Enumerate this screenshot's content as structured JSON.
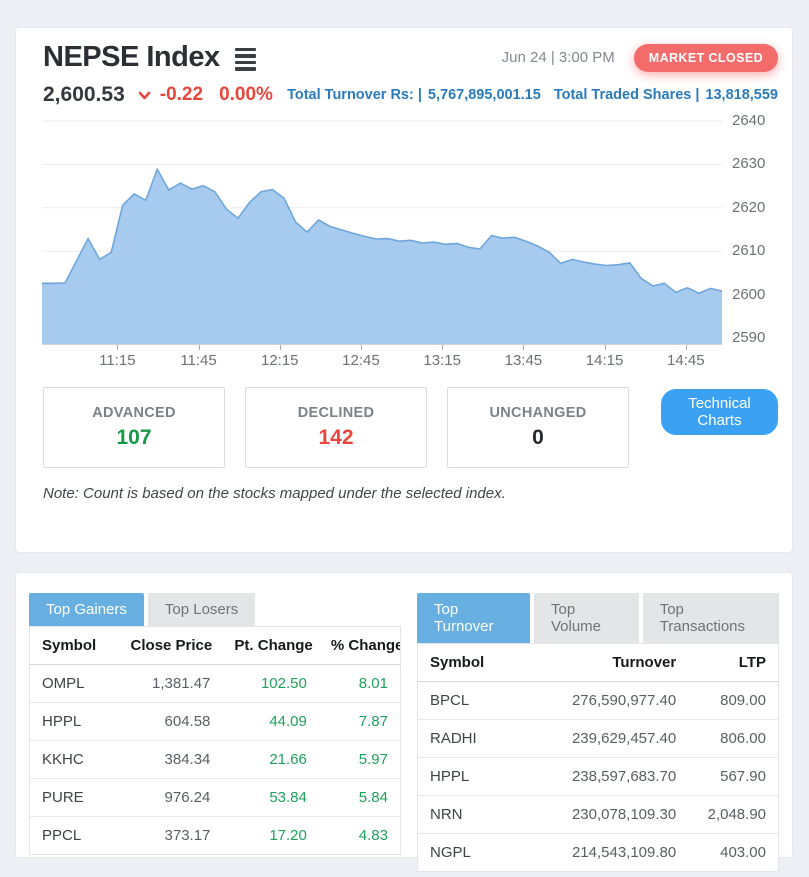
{
  "header": {
    "title": "NEPSE Index",
    "datetime": "Jun 24 | 3:00 PM",
    "market_status": "MARKET CLOSED",
    "index_value": "2,600.53",
    "point_change": "-0.22",
    "percent_change": "0.00%",
    "total_turnover_label": "Total Turnover Rs: |",
    "total_turnover_value": "5,767,895,001.15",
    "total_shares_label": "Total Traded Shares |",
    "total_shares_value": "13,818,559"
  },
  "chart_data": {
    "type": "area",
    "title": "NEPSE Index intraday",
    "x_tick_labels": [
      "11:15",
      "11:45",
      "12:15",
      "12:45",
      "13:15",
      "13:45",
      "14:15",
      "14:45"
    ],
    "y_tick_labels": [
      2640,
      2630,
      2620,
      2610,
      2600,
      2590
    ],
    "ylim": [
      2588.5,
      2641.8
    ],
    "grid": true,
    "legend": false,
    "series": [
      {
        "name": "NEPSE Index",
        "values": [
          2602.6,
          2602.6,
          2602.7,
          2607.8,
          2612.9,
          2608.1,
          2609.7,
          2620.6,
          2623.2,
          2621.7,
          2628.9,
          2624.1,
          2625.7,
          2624.3,
          2625.1,
          2623.7,
          2619.7,
          2617.6,
          2621.2,
          2623.7,
          2624.2,
          2622.2,
          2616.7,
          2614.4,
          2617.2,
          2615.7,
          2614.9,
          2614.1,
          2613.4,
          2612.8,
          2612.9,
          2612.3,
          2612.5,
          2611.9,
          2612.1,
          2611.6,
          2611.8,
          2610.9,
          2610.5,
          2613.6,
          2613.0,
          2613.2,
          2612.3,
          2611.2,
          2609.8,
          2607.2,
          2608.1,
          2607.5,
          2607.0,
          2606.7,
          2606.9,
          2607.3,
          2603.7,
          2602.0,
          2602.6,
          2600.5,
          2601.6,
          2600.3,
          2601.4,
          2600.8
        ]
      }
    ],
    "colors": {
      "fill": "#a6cbee",
      "line": "#6ea6db",
      "grid": "#ebebeb"
    }
  },
  "summary": {
    "boxes": [
      {
        "label": "ADVANCED",
        "value": "107",
        "tone": "green"
      },
      {
        "label": "DECLINED",
        "value": "142",
        "tone": "red"
      },
      {
        "label": "UNCHANGED",
        "value": "0",
        "tone": "dark"
      }
    ],
    "technical_charts_label": "Technical Charts",
    "note": "Note: Count is based on the stocks mapped under the selected index."
  },
  "left_panel": {
    "tabs": [
      {
        "label": "Top Gainers",
        "active": true
      },
      {
        "label": "Top Losers",
        "active": false
      }
    ],
    "columns": [
      "Symbol",
      "Close Price",
      "Pt. Change",
      "% Change"
    ],
    "green_columns": [
      2,
      3
    ],
    "rows": [
      [
        "OMPL",
        "1,381.47",
        "102.50",
        "8.01"
      ],
      [
        "HPPL",
        "604.58",
        "44.09",
        "7.87"
      ],
      [
        "KKHC",
        "384.34",
        "21.66",
        "5.97"
      ],
      [
        "PURE",
        "976.24",
        "53.84",
        "5.84"
      ],
      [
        "PPCL",
        "373.17",
        "17.20",
        "4.83"
      ]
    ]
  },
  "right_panel": {
    "tabs": [
      {
        "label": "Top Turnover",
        "active": true
      },
      {
        "label": "Top Volume",
        "active": false
      },
      {
        "label": "Top Transactions",
        "active": false
      }
    ],
    "columns": [
      "Symbol",
      "Turnover",
      "LTP"
    ],
    "green_columns": [],
    "rows": [
      [
        "BPCL",
        "276,590,977.40",
        "809.00"
      ],
      [
        "RADHI",
        "239,629,457.40",
        "806.00"
      ],
      [
        "HPPL",
        "238,597,683.70",
        "567.90"
      ],
      [
        "NRN",
        "230,078,109.30",
        "2,048.90"
      ],
      [
        "NGPL",
        "214,543,109.80",
        "403.00"
      ]
    ]
  }
}
